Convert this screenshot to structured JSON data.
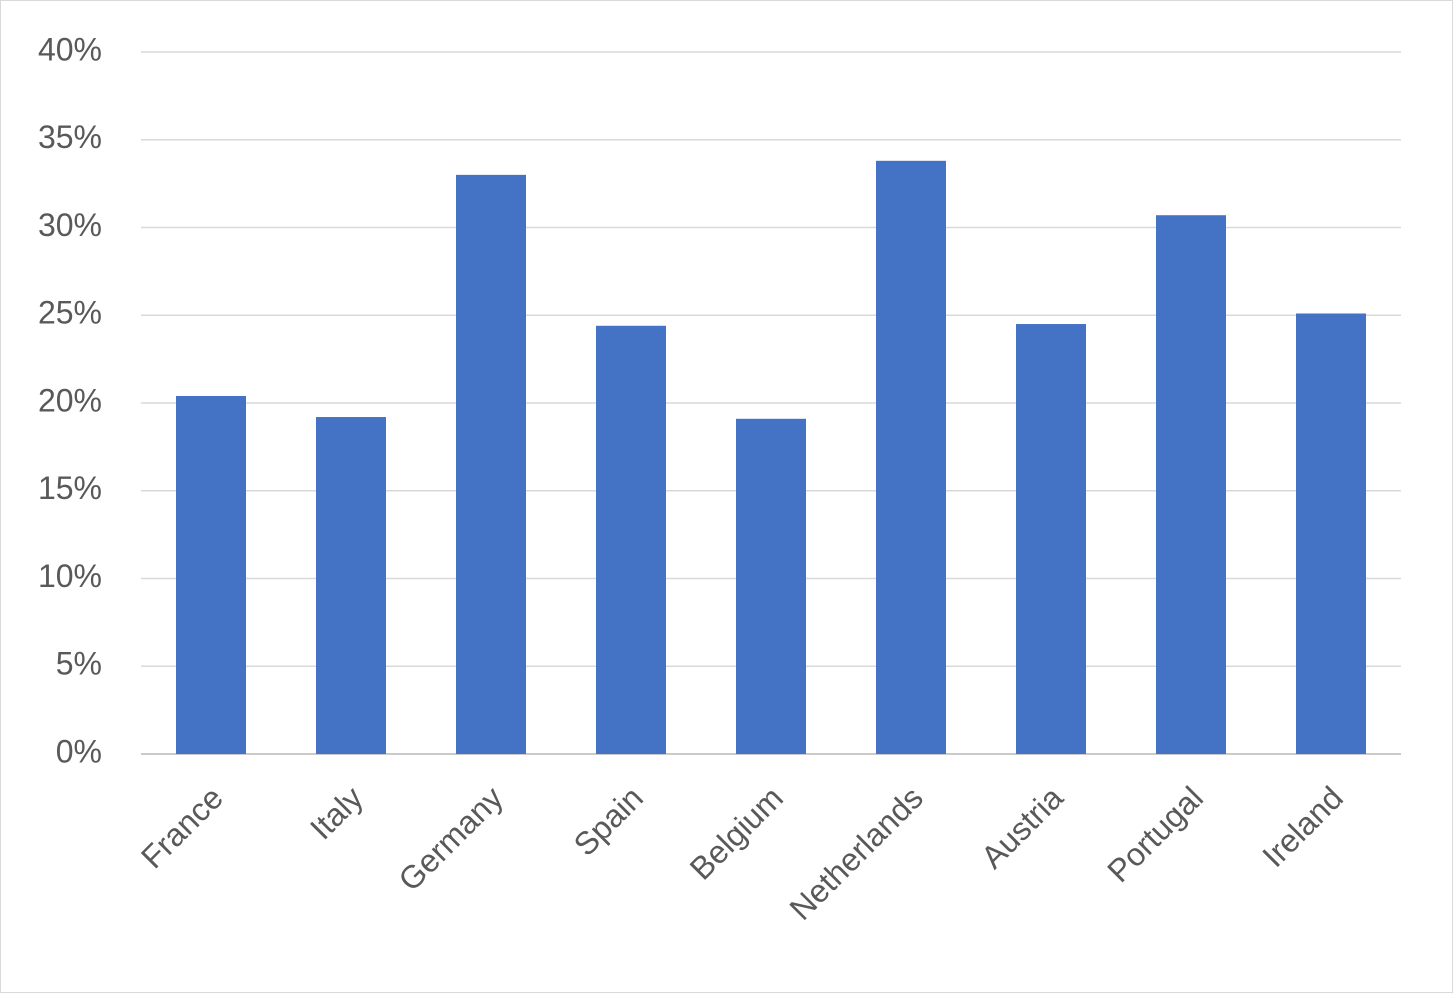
{
  "chart_data": {
    "type": "bar",
    "categories": [
      "France",
      "Italy",
      "Germany",
      "Spain",
      "Belgium",
      "Netherlands",
      "Austria",
      "Portugal",
      "Ireland"
    ],
    "values": [
      20.4,
      19.2,
      33.0,
      24.4,
      19.1,
      33.8,
      24.5,
      30.7,
      25.1
    ],
    "color": "#4472c4",
    "ylim": [
      0,
      40
    ],
    "yticks": [
      {
        "value": 0,
        "label": "0%"
      },
      {
        "value": 5,
        "label": "5%"
      },
      {
        "value": 10,
        "label": "10%"
      },
      {
        "value": 15,
        "label": "15%"
      },
      {
        "value": 20,
        "label": "20%"
      },
      {
        "value": 25,
        "label": "25%"
      },
      {
        "value": 30,
        "label": "30%"
      },
      {
        "value": 35,
        "label": "35%"
      },
      {
        "value": 40,
        "label": "40%"
      }
    ],
    "grid": true
  }
}
